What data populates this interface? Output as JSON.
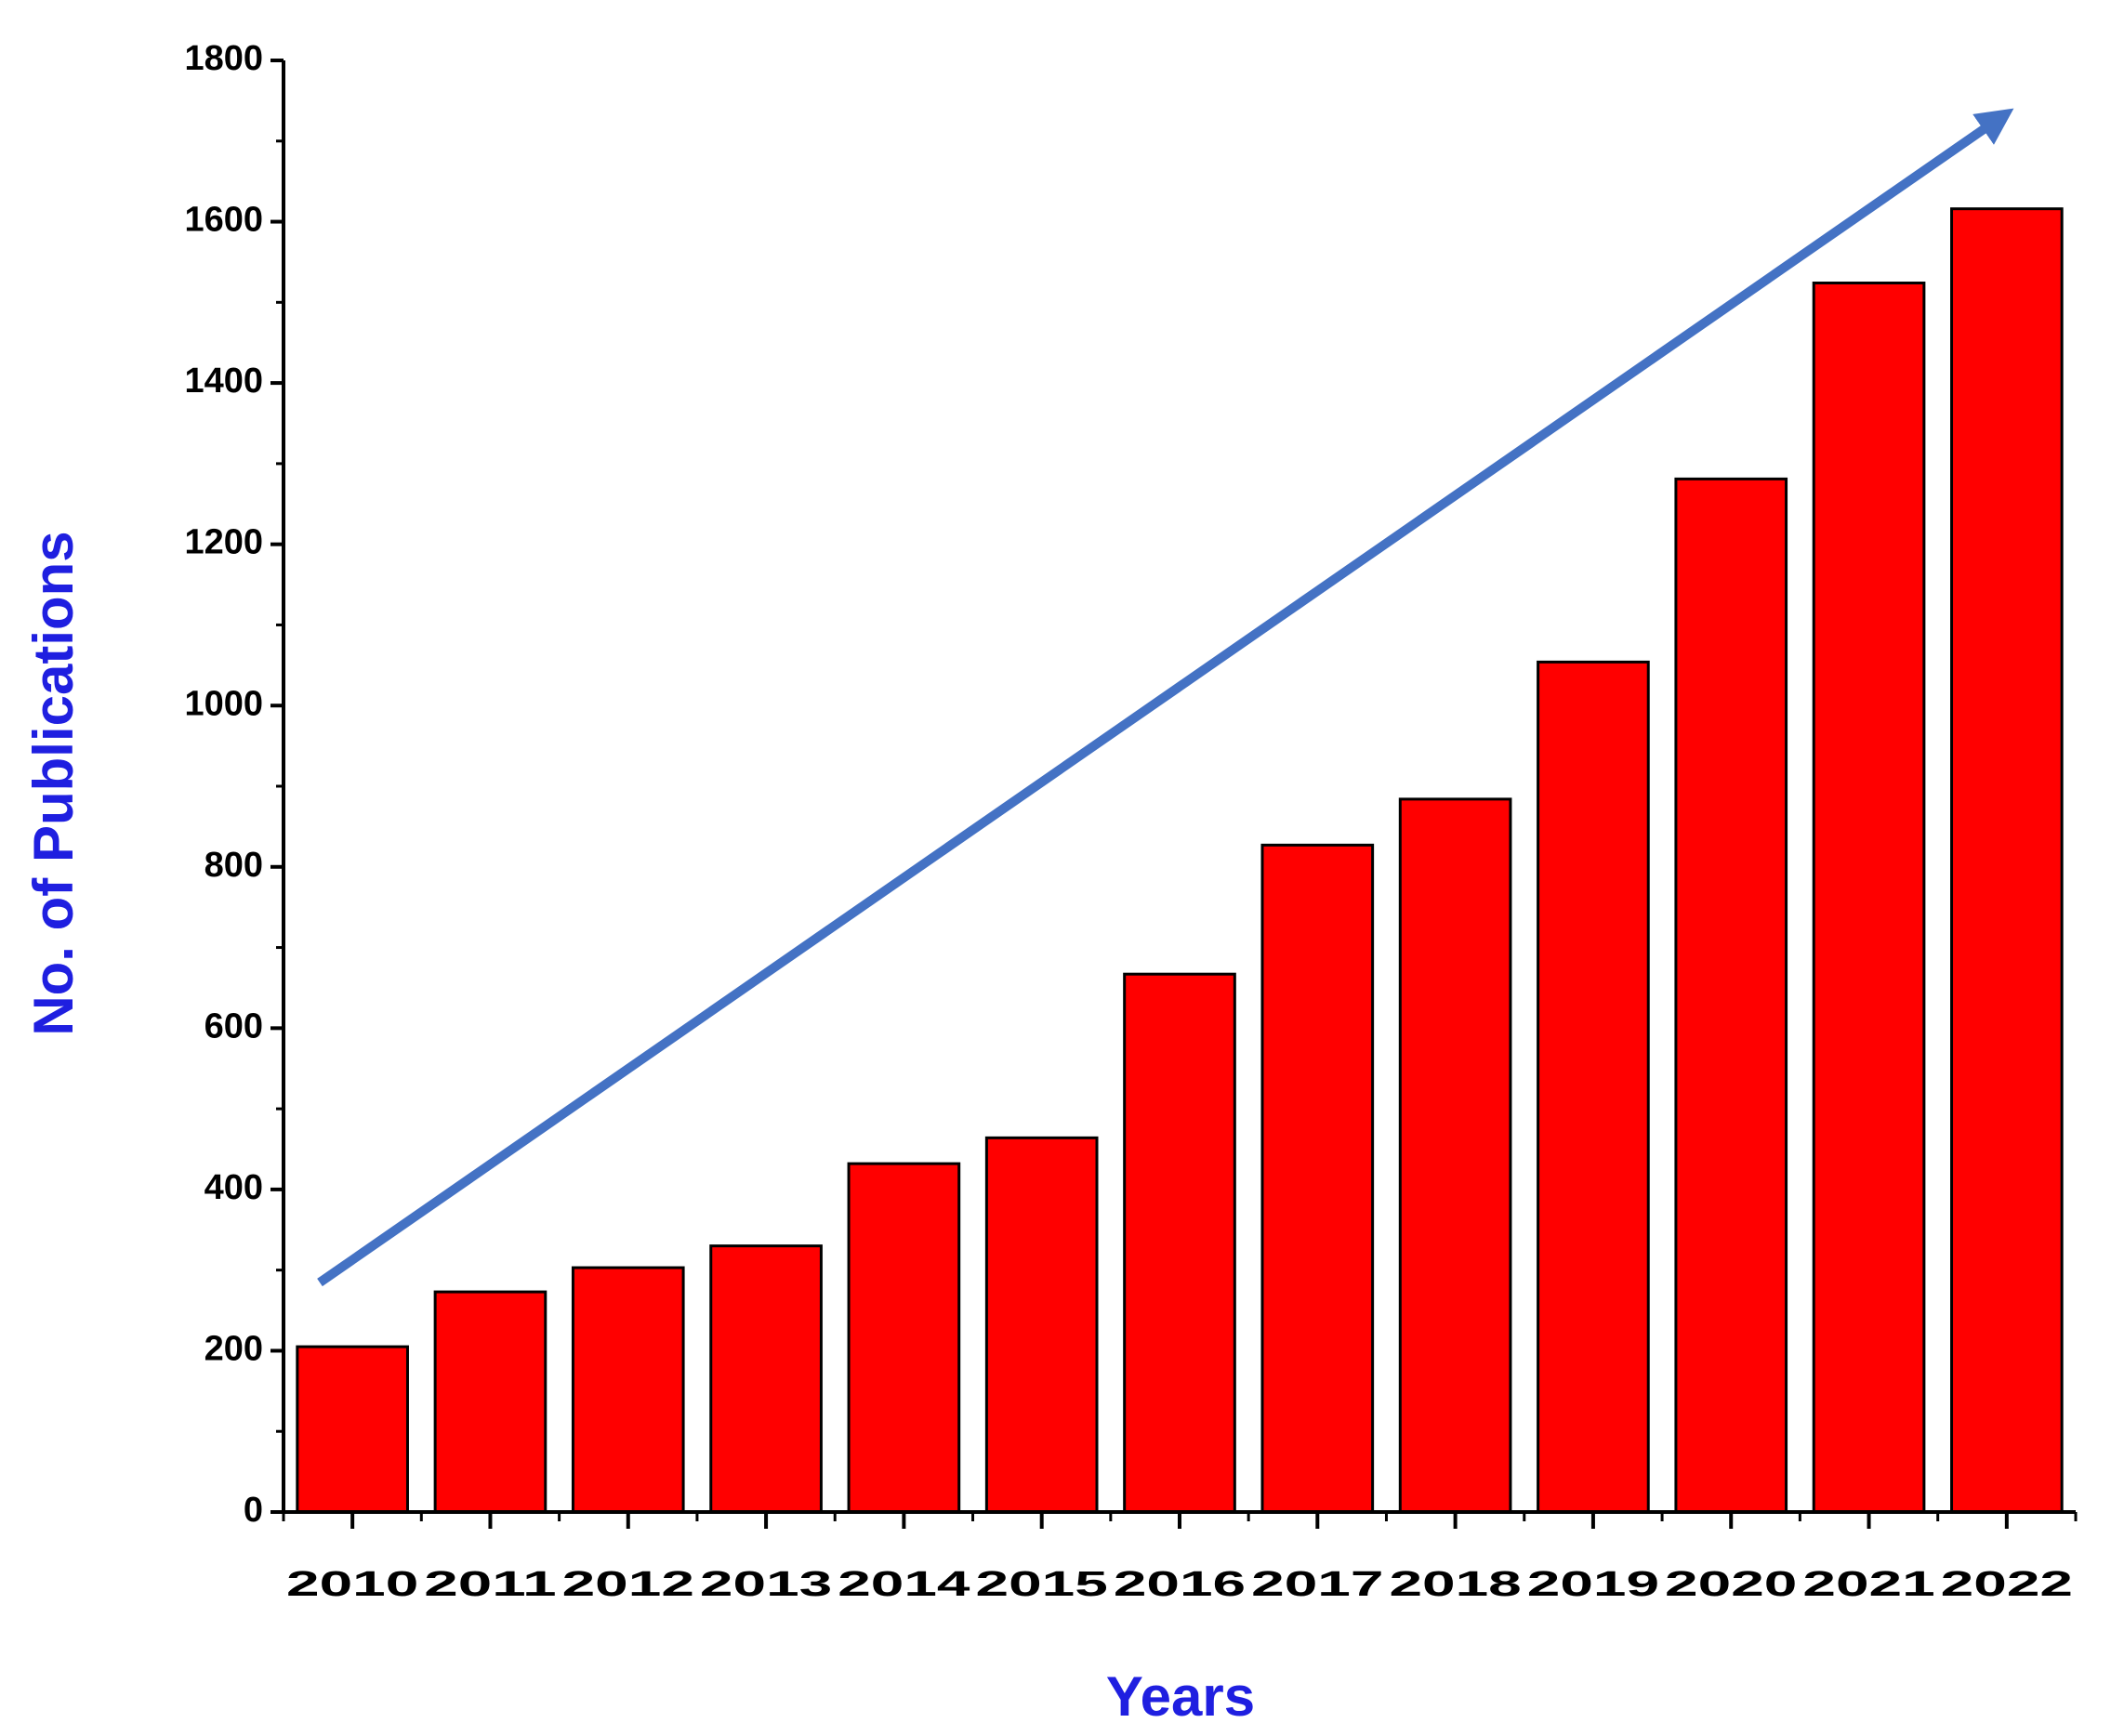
{
  "chart_data": {
    "type": "bar",
    "x_label": "Years",
    "y_label": "No. of Publications",
    "categories": [
      "2010",
      "2011",
      "2012",
      "2013",
      "2014",
      "2015",
      "2016",
      "2017",
      "2018",
      "2019",
      "2020",
      "2021",
      "2022"
    ],
    "values": [
      205,
      273,
      303,
      330,
      432,
      464,
      667,
      827,
      884,
      1054,
      1281,
      1524,
      1616
    ],
    "color": "#ff0000",
    "ylim": [
      0,
      1800
    ],
    "yticks": [
      0,
      200,
      400,
      600,
      800,
      1000,
      1200,
      1400,
      1600,
      1800
    ]
  }
}
